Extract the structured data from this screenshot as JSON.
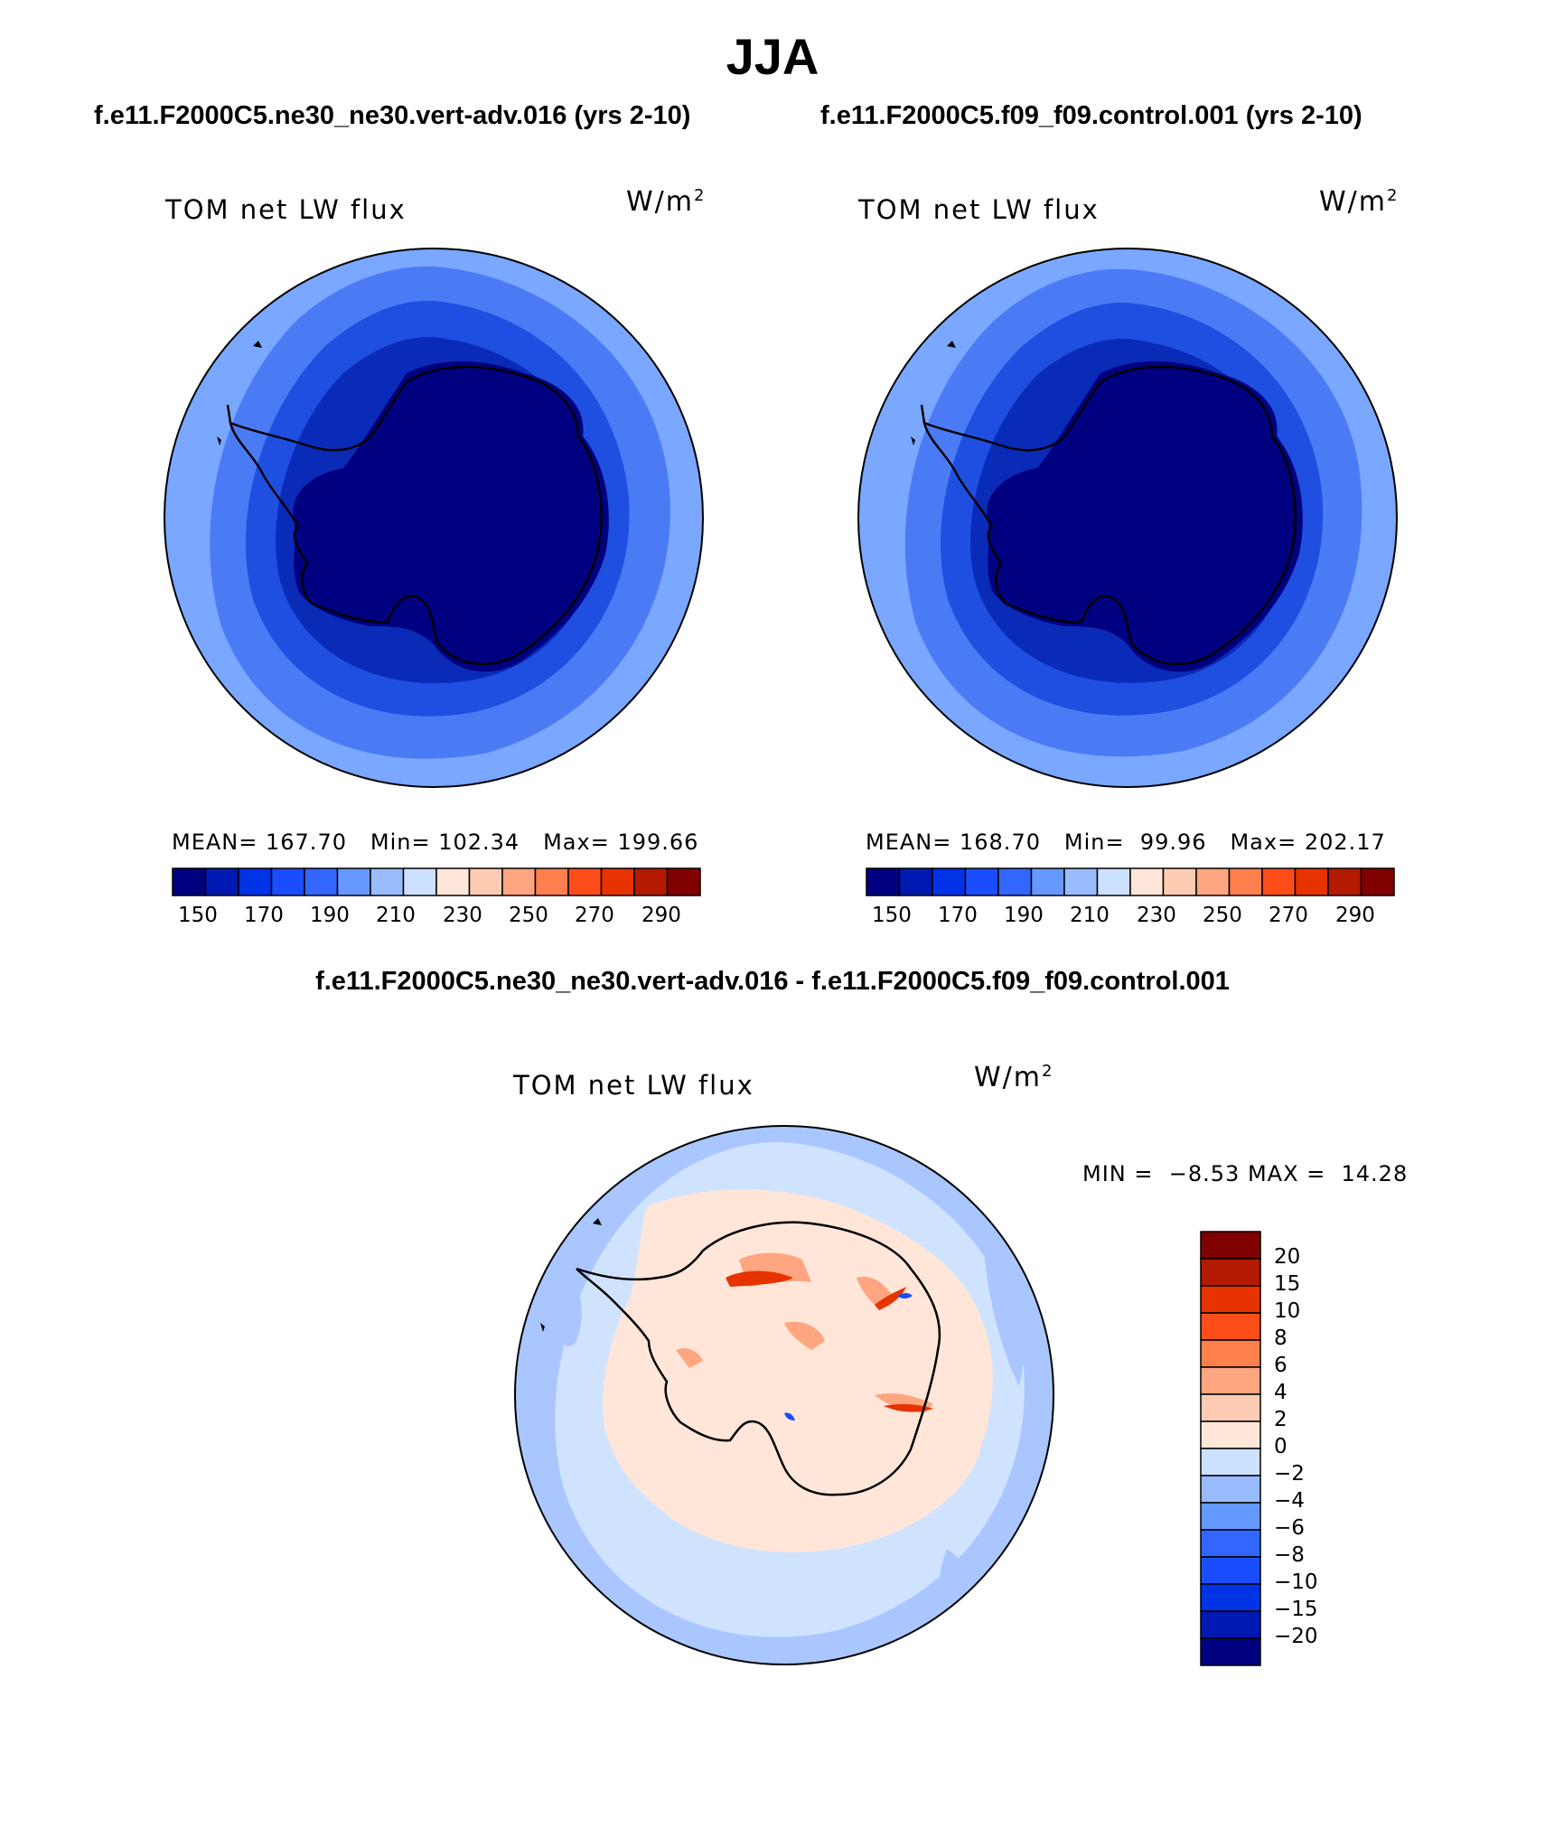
{
  "season_title": "JJA",
  "left_panel": {
    "run_title": "f.e11.F2000C5.ne30_ne30.vert-adv.016 (yrs 2-10)",
    "variable": "TOM net LW flux",
    "unit_base": "W/m",
    "unit_exp": "2",
    "stats": {
      "mean_label": "MEAN=",
      "mean": "167.70",
      "min_label": "Min=",
      "min": "102.34",
      "max_label": "Max=",
      "max": "199.66"
    }
  },
  "right_panel": {
    "run_title": "f.e11.F2000C5.f09_f09.control.001 (yrs 2-10)",
    "variable": "TOM net LW flux",
    "unit_base": "W/m",
    "unit_exp": "2",
    "stats": {
      "mean_label": "MEAN=",
      "mean": "168.70",
      "min_label": "Min=",
      "min": "99.96",
      "max_label": "Max=",
      "max": "202.17"
    }
  },
  "absolute_colorbar": {
    "colors": [
      "#000080",
      "#0019b2",
      "#0033e6",
      "#1a4dff",
      "#3366ff",
      "#6699ff",
      "#99bbff",
      "#cce0ff",
      "#ffe6d9",
      "#ffccb3",
      "#ffa580",
      "#ff7f4d",
      "#ff4d1a",
      "#e63300",
      "#b31a00",
      "#800000"
    ],
    "tick_labels": [
      "150",
      "170",
      "190",
      "210",
      "230",
      "250",
      "270",
      "290"
    ]
  },
  "diff_panel": {
    "title": "f.e11.F2000C5.ne30_ne30.vert-adv.016 - f.e11.F2000C5.f09_f09.control.001",
    "variable": "TOM net LW flux",
    "unit_base": "W/m",
    "unit_exp": "2",
    "min_label": "MIN =",
    "min": "−8.53",
    "max_label": "MAX =",
    "max": "14.28"
  },
  "diff_colorbar": {
    "colors_top_to_bottom": [
      "#800000",
      "#b31a00",
      "#e63300",
      "#ff4d1a",
      "#ff7f4d",
      "#ffa580",
      "#ffccb3",
      "#ffe6d9",
      "#cce0ff",
      "#99bbff",
      "#6699ff",
      "#3366ff",
      "#1a4dff",
      "#0033e6",
      "#0019b2",
      "#000080"
    ],
    "labels_top_to_bottom": [
      "20",
      "15",
      "10",
      "8",
      "6",
      "4",
      "2",
      "0",
      "−2",
      "−4",
      "−6",
      "−8",
      "−10",
      "−15",
      "−20"
    ]
  },
  "colors": {
    "ocean_outer": "#7aa7ff",
    "ocean_mid": "#4a7bf5",
    "ocean_inner": "#1f4fe0",
    "ice_edge": "#0a2bb8",
    "continent": "#000080",
    "diff_ocean": "#cfe3ff",
    "diff_ocean_light": "#a9c6ff",
    "diff_land": "#ffe6d9",
    "diff_pos": "#ffa580",
    "diff_strong": "#e63300"
  }
}
